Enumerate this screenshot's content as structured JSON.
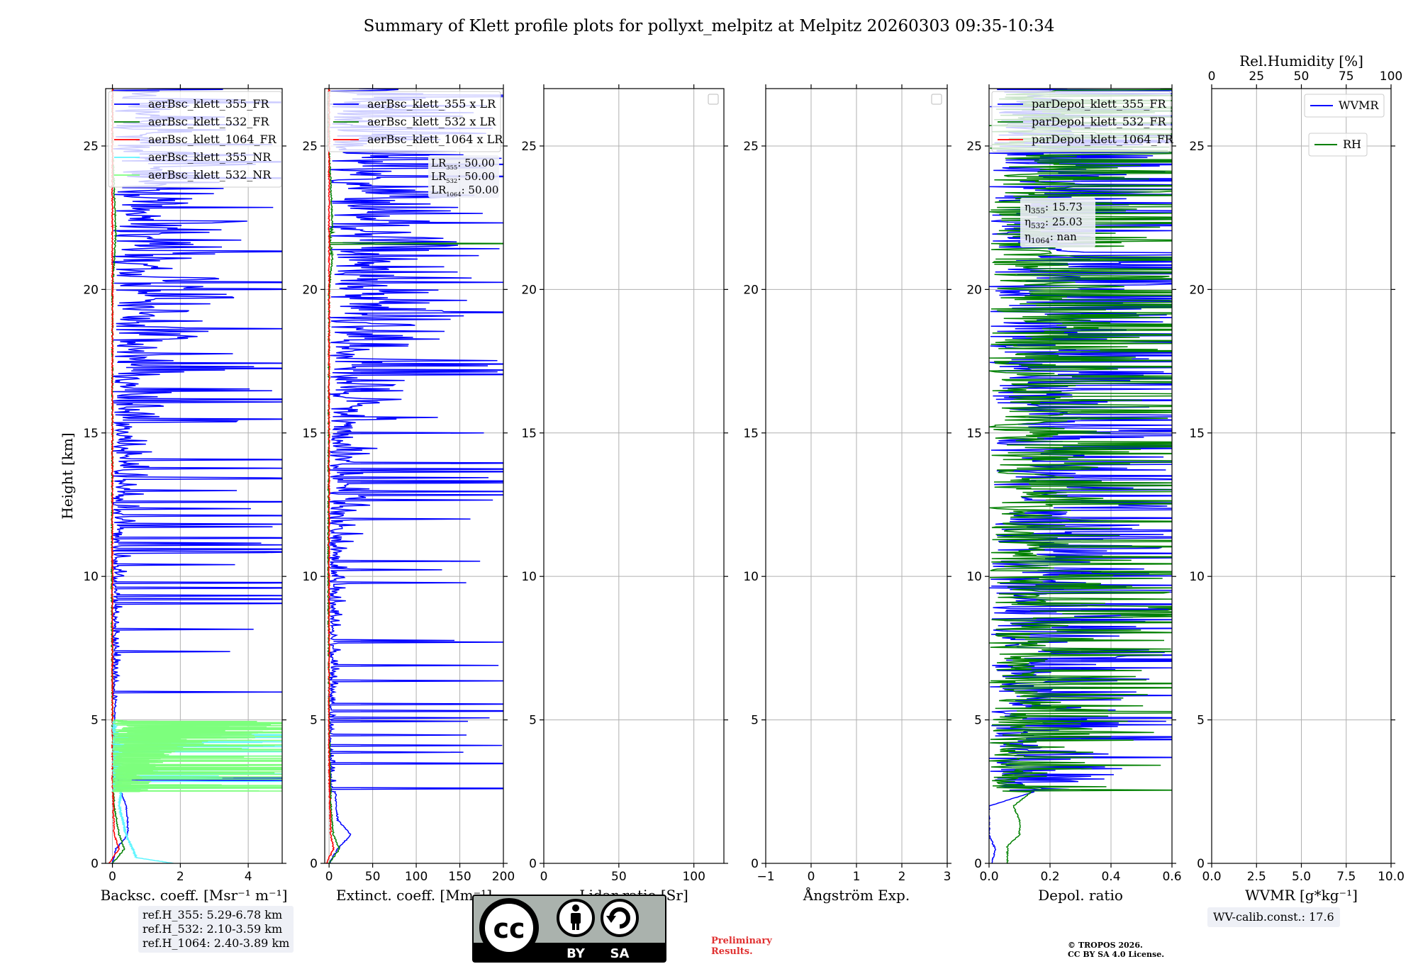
{
  "figure": {
    "title": "Summary of Klett profile plots for pollyxt_melpitz at Melpitz 20260303 09:35-10:34",
    "ref_heights": [
      "ref.H_355: 5.29-6.78 km",
      "ref.H_532: 2.10-3.59 km",
      "ref.H_1064: 2.40-3.89 km"
    ],
    "wv_calib": "WV-calib.const.: 17.6",
    "preliminary": [
      "Preliminary",
      "Results."
    ],
    "copyright": [
      "© TROPOS 2026.",
      "CC BY SA 4.0 License."
    ],
    "license_badge": {
      "cc": "cc",
      "by": "BY",
      "sa": "SA"
    }
  },
  "chart_data": [
    {
      "type": "line",
      "panel": "backscatter",
      "xlabel": "Backsc. coeff. [Msr⁻¹ m⁻¹]",
      "ylabel": "Height [km]",
      "xlim": [
        -0.2,
        5
      ],
      "ylim": [
        0,
        27
      ],
      "xticks": [
        0,
        2,
        4
      ],
      "yticks": [
        0,
        5,
        10,
        15,
        20,
        25
      ],
      "grid": true,
      "legend_position": "top-left",
      "series": [
        {
          "name": "aerBsc_klett_355_FR",
          "color": "#0000ff",
          "profile": [
            [
              0,
              0.0
            ],
            [
              0.5,
              0.1
            ],
            [
              1,
              0.45
            ],
            [
              1.5,
              0.45
            ],
            [
              2,
              0.4
            ],
            [
              3,
              0.1
            ],
            [
              4,
              0.05
            ],
            [
              5,
              0.05
            ],
            [
              7,
              0.2
            ],
            [
              10,
              0.3
            ],
            [
              12,
              0.7
            ],
            [
              15,
              1.0
            ],
            [
              18,
              2.0
            ],
            [
              20,
              3.0
            ],
            [
              22,
              3.0
            ],
            [
              25,
              3.0
            ],
            [
              27,
              3.0
            ]
          ]
        },
        {
          "name": "aerBsc_klett_532_FR",
          "color": "#008000",
          "profile": [
            [
              0,
              0.0
            ],
            [
              0.5,
              0.35
            ],
            [
              1,
              0.2
            ],
            [
              2,
              0.05
            ],
            [
              5,
              0.0
            ],
            [
              10,
              -0.02
            ],
            [
              15,
              0.0
            ],
            [
              20,
              0.0
            ],
            [
              22,
              0.1
            ],
            [
              25,
              0.0
            ],
            [
              27,
              0.0
            ]
          ]
        },
        {
          "name": "aerBsc_klett_1064_FR",
          "color": "#ff0000",
          "profile": [
            [
              0,
              -0.1
            ],
            [
              0.5,
              0.2
            ],
            [
              1,
              0.05
            ],
            [
              3,
              0.0
            ],
            [
              10,
              0.0
            ],
            [
              20,
              0.0
            ],
            [
              27,
              0.0
            ]
          ]
        },
        {
          "name": "aerBsc_klett_355_NR",
          "color": "#5ff5ff",
          "profile": [
            [
              0,
              1.8
            ],
            [
              0.2,
              0.7
            ],
            [
              0.5,
              0.6
            ],
            [
              1,
              0.4
            ],
            [
              1.5,
              0.3
            ],
            [
              2,
              0.2
            ],
            [
              3,
              0.3
            ],
            [
              4,
              0.2
            ],
            [
              5,
              0.1
            ]
          ]
        },
        {
          "name": "aerBsc_klett_532_NR",
          "color": "#7dff7d",
          "profile": [
            [
              2.5,
              0.8
            ],
            [
              3,
              1.0
            ],
            [
              3.5,
              1.2
            ],
            [
              4,
              1.8
            ],
            [
              4.5,
              3.5
            ],
            [
              4.8,
              4.5
            ],
            [
              5,
              0.1
            ]
          ]
        }
      ],
      "annotations": []
    },
    {
      "type": "line",
      "panel": "extinction",
      "xlabel": "Extinct. coeff. [Mm⁻¹]",
      "xlim": [
        -5,
        200
      ],
      "ylim": [
        0,
        27
      ],
      "xticks": [
        0,
        50,
        100,
        150,
        200
      ],
      "yticks": [
        0,
        5,
        10,
        15,
        20,
        25
      ],
      "grid": true,
      "legend_position": "top-left",
      "series": [
        {
          "name": "aerBsc_klett_355 x LR",
          "color": "#0000ff",
          "profile": [
            [
              0,
              0
            ],
            [
              0.5,
              10
            ],
            [
              1,
              25
            ],
            [
              1.5,
              10
            ],
            [
              2,
              8
            ],
            [
              4,
              5
            ],
            [
              5,
              5
            ],
            [
              7,
              10
            ],
            [
              10,
              20
            ],
            [
              12,
              35
            ],
            [
              15,
              60
            ],
            [
              18,
              90
            ],
            [
              20,
              150
            ],
            [
              22,
              150
            ],
            [
              25,
              150
            ],
            [
              27,
              150
            ]
          ]
        },
        {
          "name": "aerBsc_klett_532 x LR",
          "color": "#008000",
          "profile": [
            [
              0,
              0
            ],
            [
              0.5,
              12
            ],
            [
              1,
              5
            ],
            [
              2,
              2
            ],
            [
              5,
              0
            ],
            [
              10,
              -1
            ],
            [
              20,
              0
            ],
            [
              21.5,
              5
            ],
            [
              25,
              0
            ],
            [
              27,
              0
            ]
          ]
        },
        {
          "name": "aerBsc_klett_1064 x LR",
          "color": "#ff0000",
          "profile": [
            [
              0,
              -3
            ],
            [
              0.5,
              5
            ],
            [
              1,
              2
            ],
            [
              3,
              0
            ],
            [
              10,
              0
            ],
            [
              27,
              0
            ]
          ]
        }
      ],
      "annotations": [
        "LR355: 50.00",
        "LR532: 50.00",
        "LR1064: 50.00"
      ]
    },
    {
      "type": "line",
      "panel": "lidar_ratio",
      "xlabel": "Lidar ratio [Sr]",
      "xlim": [
        0,
        120
      ],
      "ylim": [
        0,
        27
      ],
      "xticks": [
        0,
        50,
        100
      ],
      "yticks": [
        0,
        5,
        10,
        15,
        20,
        25
      ],
      "grid": true,
      "legend_position": "top-right",
      "series": []
    },
    {
      "type": "line",
      "panel": "angstrom",
      "xlabel": "Ångström Exp.",
      "xlim": [
        -1,
        3
      ],
      "ylim": [
        0,
        27
      ],
      "xticks": [
        -1,
        0,
        1,
        2,
        3
      ],
      "yticks": [
        0,
        5,
        10,
        15,
        20,
        25
      ],
      "grid": true,
      "legend_position": "top-right",
      "series": []
    },
    {
      "type": "line",
      "panel": "depolarization",
      "xlabel": "Depol. ratio",
      "xlim": [
        0,
        0.6
      ],
      "ylim": [
        0,
        27
      ],
      "xticks": [
        0.0,
        0.2,
        0.4,
        0.6
      ],
      "yticks": [
        0,
        5,
        10,
        15,
        20,
        25
      ],
      "grid": true,
      "legend_position": "top-left",
      "series": [
        {
          "name": "parDepol_klett_355_FR",
          "color": "#0000ff",
          "profile": [
            [
              0,
              0.01
            ],
            [
              0.5,
              0.02
            ],
            [
              1,
              0.0
            ],
            [
              2,
              0.0
            ],
            [
              3,
              0.3
            ],
            [
              5,
              0.4
            ],
            [
              10,
              0.5
            ],
            [
              15,
              0.6
            ],
            [
              20,
              0.6
            ],
            [
              25,
              0.6
            ],
            [
              27,
              0.6
            ]
          ]
        },
        {
          "name": "parDepol_klett_532_FR",
          "color": "#008000",
          "profile": [
            [
              0,
              0.06
            ],
            [
              0.6,
              0.06
            ],
            [
              1,
              0.1
            ],
            [
              1.5,
              0.1
            ],
            [
              2,
              0.08
            ],
            [
              3,
              0.2
            ],
            [
              5,
              0.3
            ],
            [
              10,
              0.5
            ],
            [
              15,
              0.6
            ],
            [
              20,
              0.6
            ],
            [
              25,
              0.6
            ],
            [
              27,
              0.6
            ]
          ]
        },
        {
          "name": "parDepol_klett_1064_FR",
          "color": "#ff0000",
          "profile": []
        }
      ],
      "annotations": [
        "η355: 15.73",
        "η532: 25.03",
        "η1064: nan"
      ]
    },
    {
      "type": "line",
      "panel": "wvmr",
      "xlabel": "WVMR [g*kg⁻¹]",
      "xlim": [
        0,
        10
      ],
      "ylim": [
        0,
        27
      ],
      "xticks": [
        0.0,
        2.5,
        5.0,
        7.5,
        10.0
      ],
      "yticks": [
        0,
        5,
        10,
        15,
        20,
        25
      ],
      "top_axis_label": "Rel.Humidity [%]",
      "top_xlim": [
        0,
        100
      ],
      "top_xticks": [
        0,
        25,
        50,
        75,
        100
      ],
      "grid": true,
      "legend_position": "top-right",
      "series": [
        {
          "name": "WVMR",
          "color": "#0000ff",
          "profile": []
        },
        {
          "name": "RH",
          "color": "#008000",
          "profile": []
        }
      ]
    }
  ]
}
